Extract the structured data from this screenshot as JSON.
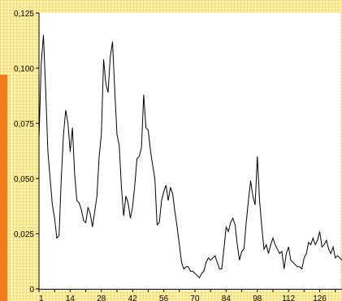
{
  "chart_data": {
    "type": "line",
    "title": "",
    "xlabel": "",
    "ylabel": "",
    "ylim": [
      0,
      0.125
    ],
    "yticks": [
      "0",
      "0,025",
      "0,050",
      "0,075",
      "0,100",
      "0,125"
    ],
    "ytick_values": [
      0,
      0.025,
      0.05,
      0.075,
      0.1,
      0.125
    ],
    "xlim": [
      0,
      136
    ],
    "xticks": [
      "1",
      "14",
      "28",
      "42",
      "56",
      "70",
      "84",
      "98",
      "112",
      "126"
    ],
    "xtick_values": [
      1,
      14,
      28,
      42,
      56,
      70,
      84,
      98,
      112,
      126
    ],
    "grid": false,
    "legend": "none",
    "colors": {
      "line": "#000000",
      "plot_background": "#ffffff",
      "page_background": "#fdf3b4",
      "accent_strip": "#f07b1e"
    },
    "series": [
      {
        "x": [
          0,
          1,
          2,
          3,
          4,
          5,
          6,
          7,
          8,
          9,
          10,
          11,
          12,
          13,
          14,
          15,
          16,
          17,
          18,
          19,
          20,
          21,
          22,
          23,
          24,
          25,
          26,
          27,
          28,
          29,
          30,
          31,
          32,
          33,
          34,
          35,
          36,
          37,
          38,
          39,
          40,
          41,
          42,
          43,
          44,
          45,
          46,
          47,
          48,
          49,
          50,
          51,
          52,
          53,
          54,
          55,
          56,
          57,
          58,
          59,
          60,
          61,
          62,
          63,
          64,
          65,
          66,
          67,
          68,
          69,
          70,
          71,
          72,
          73,
          74,
          75,
          76,
          77,
          78,
          79,
          80,
          81,
          82,
          83,
          84,
          85,
          86,
          87,
          88,
          89,
          90,
          91,
          92,
          93,
          94,
          95,
          96,
          97,
          98,
          99,
          100,
          101,
          102,
          103,
          104,
          105,
          106,
          107,
          108,
          109,
          110,
          111,
          112,
          113,
          114,
          115,
          116,
          117,
          118,
          119,
          120,
          121,
          122,
          123,
          124,
          125,
          126,
          127,
          128,
          129,
          130,
          131,
          132,
          133,
          134,
          135,
          136
        ],
        "values": [
          0.068,
          0.102,
          0.115,
          0.09,
          0.062,
          0.05,
          0.038,
          0.032,
          0.023,
          0.024,
          0.05,
          0.07,
          0.081,
          0.075,
          0.062,
          0.073,
          0.052,
          0.04,
          0.039,
          0.036,
          0.031,
          0.03,
          0.037,
          0.034,
          0.028,
          0.035,
          0.042,
          0.06,
          0.07,
          0.104,
          0.093,
          0.089,
          0.105,
          0.112,
          0.09,
          0.07,
          0.065,
          0.046,
          0.033,
          0.042,
          0.039,
          0.032,
          0.037,
          0.047,
          0.059,
          0.06,
          0.064,
          0.088,
          0.073,
          0.072,
          0.063,
          0.056,
          0.05,
          0.029,
          0.03,
          0.04,
          0.044,
          0.047,
          0.04,
          0.046,
          0.043,
          0.035,
          0.028,
          0.02,
          0.012,
          0.009,
          0.01,
          0.01,
          0.008,
          0.008,
          0.007,
          0.006,
          0.005,
          0.007,
          0.008,
          0.012,
          0.014,
          0.013,
          0.014,
          0.015,
          0.012,
          0.009,
          0.009,
          0.018,
          0.028,
          0.026,
          0.03,
          0.032,
          0.029,
          0.02,
          0.013,
          0.017,
          0.018,
          0.03,
          0.04,
          0.049,
          0.042,
          0.038,
          0.06,
          0.04,
          0.028,
          0.018,
          0.02,
          0.016,
          0.02,
          0.023,
          0.02,
          0.018,
          0.016,
          0.017,
          0.009,
          0.016,
          0.019,
          0.013,
          0.012,
          0.011,
          0.01,
          0.01,
          0.009,
          0.014,
          0.016,
          0.021,
          0.02,
          0.023,
          0.02,
          0.022,
          0.026,
          0.019,
          0.02,
          0.022,
          0.018,
          0.016,
          0.019,
          0.014,
          0.015,
          0.014,
          0.013
        ]
      }
    ]
  }
}
